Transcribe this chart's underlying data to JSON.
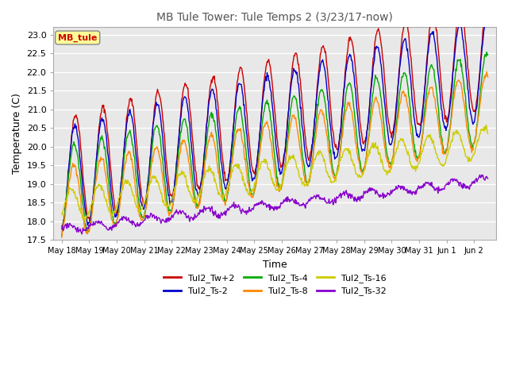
{
  "title": "MB Tule Tower: Tule Temps 2 (3/23/17-now)",
  "xlabel": "Time",
  "ylabel": "Temperature (C)",
  "ylim": [
    17.5,
    23.2
  ],
  "legend_label": "MB_tule",
  "series_labels": [
    "Tul2_Tw+2",
    "Tul2_Ts-2",
    "Tul2_Ts-4",
    "Tul2_Ts-8",
    "Tul2_Ts-16",
    "Tul2_Ts-32"
  ],
  "series_colors": [
    "#cc0000",
    "#0000cc",
    "#00aa00",
    "#ff8800",
    "#cccc00",
    "#8800cc"
  ],
  "background_color": "#e8e8e8",
  "grid_color": "#ffffff",
  "x_tick_labels": [
    "May 18",
    "May 19",
    "May 20",
    "May 21",
    "May 22",
    "May 23",
    "May 24",
    "May 25",
    "May 26",
    "May 27",
    "May 28",
    "May 29",
    "May 30",
    "May 31",
    "Jun 1",
    "Jun 2"
  ],
  "x_tick_positions": [
    0,
    1,
    2,
    3,
    4,
    5,
    6,
    7,
    8,
    9,
    10,
    11,
    12,
    13,
    14,
    15
  ],
  "yticks": [
    17.5,
    18.0,
    18.5,
    19.0,
    19.5,
    20.0,
    20.5,
    21.0,
    21.5,
    22.0,
    22.5,
    23.0
  ]
}
